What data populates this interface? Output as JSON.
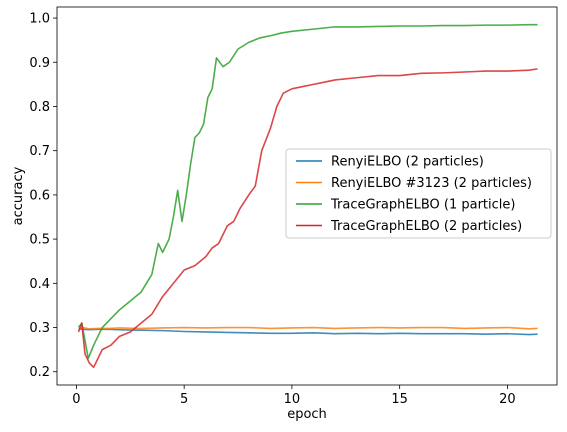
{
  "chart_data": {
    "type": "line",
    "title": "",
    "xlabel": "epoch",
    "ylabel": "accuracy",
    "xlim": [
      -0.9,
      22.3
    ],
    "ylim": [
      0.17,
      1.025
    ],
    "xticks": [
      0,
      5,
      10,
      15,
      20
    ],
    "xtick_labels": [
      "0",
      "5",
      "10",
      "15",
      "20"
    ],
    "yticks": [
      0.2,
      0.3,
      0.4,
      0.5,
      0.6,
      0.7,
      0.8,
      0.9,
      1.0
    ],
    "ytick_labels": [
      "0.2",
      "0.3",
      "0.4",
      "0.5",
      "0.6",
      "0.7",
      "0.8",
      "0.9",
      "1.0"
    ],
    "grid": false,
    "legend_position": "center-right",
    "series": [
      {
        "name": "RenyiELBO (2 particles)",
        "color": "#1f77b4",
        "x": [
          0.1,
          0.3,
          0.6,
          1,
          1.5,
          2,
          3,
          4,
          5,
          6,
          7,
          8,
          9,
          10,
          11,
          12,
          13,
          14,
          15,
          16,
          17,
          18,
          19,
          20,
          21,
          21.4
        ],
        "y": [
          0.297,
          0.296,
          0.295,
          0.296,
          0.296,
          0.295,
          0.294,
          0.293,
          0.291,
          0.29,
          0.289,
          0.288,
          0.287,
          0.287,
          0.288,
          0.286,
          0.287,
          0.286,
          0.287,
          0.286,
          0.286,
          0.286,
          0.285,
          0.286,
          0.284,
          0.285
        ]
      },
      {
        "name": "RenyiELBO #3123 (2 particles)",
        "color": "#ff7f0e",
        "x": [
          0.1,
          0.3,
          0.6,
          1,
          1.5,
          2,
          3,
          4,
          5,
          6,
          7,
          8,
          9,
          10,
          11,
          12,
          13,
          14,
          15,
          16,
          17,
          18,
          19,
          20,
          21,
          21.4
        ],
        "y": [
          0.295,
          0.3,
          0.297,
          0.298,
          0.298,
          0.299,
          0.298,
          0.299,
          0.3,
          0.299,
          0.3,
          0.3,
          0.298,
          0.299,
          0.3,
          0.298,
          0.299,
          0.3,
          0.299,
          0.3,
          0.3,
          0.298,
          0.299,
          0.3,
          0.297,
          0.298
        ]
      },
      {
        "name": "TraceGraphELBO (1 particle)",
        "color": "#2ca02c",
        "x": [
          0.1,
          0.25,
          0.4,
          0.55,
          0.8,
          1.2,
          1.6,
          2,
          2.5,
          3,
          3.5,
          3.8,
          4,
          4.3,
          4.5,
          4.7,
          4.9,
          5.1,
          5.3,
          5.5,
          5.7,
          5.9,
          6.1,
          6.3,
          6.5,
          6.8,
          7.1,
          7.5,
          8,
          8.5,
          9,
          9.5,
          10,
          11,
          12,
          13,
          14,
          15,
          16,
          17,
          18,
          19,
          20,
          21,
          21.4
        ],
        "y": [
          0.3,
          0.31,
          0.27,
          0.23,
          0.26,
          0.3,
          0.32,
          0.34,
          0.36,
          0.38,
          0.42,
          0.49,
          0.47,
          0.5,
          0.55,
          0.61,
          0.54,
          0.6,
          0.67,
          0.73,
          0.74,
          0.76,
          0.82,
          0.84,
          0.91,
          0.89,
          0.9,
          0.93,
          0.945,
          0.955,
          0.96,
          0.966,
          0.97,
          0.975,
          0.98,
          0.98,
          0.981,
          0.982,
          0.982,
          0.983,
          0.983,
          0.984,
          0.984,
          0.985,
          0.985
        ]
      },
      {
        "name": "TraceGraphELBO (2 particles)",
        "color": "#d62728",
        "x": [
          0.1,
          0.25,
          0.4,
          0.6,
          0.8,
          1.2,
          1.6,
          2,
          2.5,
          3,
          3.5,
          4,
          4.5,
          5,
          5.5,
          6,
          6.3,
          6.6,
          7,
          7.3,
          7.6,
          8,
          8.3,
          8.6,
          9,
          9.3,
          9.6,
          10,
          10.5,
          11,
          11.5,
          12,
          13,
          14,
          15,
          16,
          17,
          18,
          19,
          20,
          21,
          21.4
        ],
        "y": [
          0.29,
          0.31,
          0.24,
          0.22,
          0.21,
          0.25,
          0.26,
          0.28,
          0.29,
          0.31,
          0.33,
          0.37,
          0.4,
          0.43,
          0.44,
          0.46,
          0.48,
          0.49,
          0.53,
          0.54,
          0.57,
          0.6,
          0.62,
          0.7,
          0.75,
          0.8,
          0.83,
          0.84,
          0.845,
          0.85,
          0.855,
          0.86,
          0.865,
          0.87,
          0.87,
          0.875,
          0.876,
          0.878,
          0.88,
          0.88,
          0.882,
          0.885
        ]
      }
    ]
  }
}
